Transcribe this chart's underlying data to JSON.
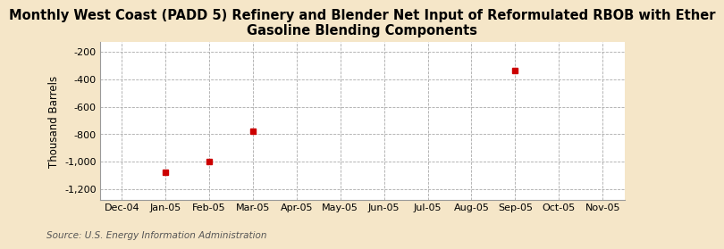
{
  "title": "Monthly West Coast (PADD 5) Refinery and Blender Net Input of Reformulated RBOB with Ether\nGasoline Blending Components",
  "ylabel": "Thousand Barrels",
  "source": "Source: U.S. Energy Information Administration",
  "x_labels": [
    "Dec-04",
    "Jan-05",
    "Feb-05",
    "Mar-05",
    "Apr-05",
    "May-05",
    "Jun-05",
    "Jul-05",
    "Aug-05",
    "Sep-05",
    "Oct-05",
    "Nov-05"
  ],
  "x_values": [
    0,
    1,
    2,
    3,
    4,
    5,
    6,
    7,
    8,
    9,
    10,
    11
  ],
  "data_x": [
    1,
    2,
    3,
    9
  ],
  "data_y": [
    -1080,
    -1000,
    -775,
    -335
  ],
  "ylim": [
    -1280,
    -130
  ],
  "yticks": [
    -1200,
    -1000,
    -800,
    -600,
    -400,
    -200
  ],
  "ytick_labels": [
    "-1,200",
    "-1,000",
    "-800",
    "-600",
    "-400",
    "-200"
  ],
  "marker_color": "#cc0000",
  "marker_size": 4,
  "figure_bg": "#f5e6c8",
  "plot_bg": "#ffffff",
  "grid_color": "#aaaaaa",
  "title_fontsize": 10.5,
  "axis_fontsize": 8.5,
  "tick_fontsize": 8,
  "source_fontsize": 7.5
}
